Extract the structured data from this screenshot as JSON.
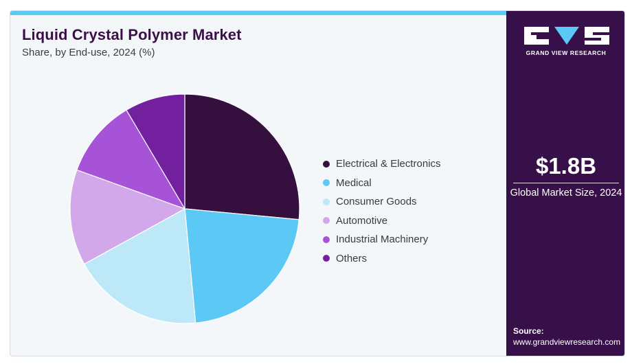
{
  "header": {
    "title": "Liquid Crystal Polymer Market",
    "subtitle": "Share, by End-use, 2024 (%)"
  },
  "sidebar": {
    "brand": "GRAND VIEW RESEARCH",
    "market_value": "$1.8B",
    "market_label": "Global Market Size, 2024",
    "source_label": "Source:",
    "source_url": "www.grandviewresearch.com"
  },
  "colors": {
    "accent_bar": "#5bc8f5",
    "sidebar_bg": "#37104a",
    "title": "#3a1047"
  },
  "chart_data": {
    "type": "pie",
    "title": "Liquid Crystal Polymer Market",
    "subtitle": "Share, by End-use, 2024 (%)",
    "legend_position": "right",
    "categories": [
      "Electrical & Electronics",
      "Medical",
      "Consumer Goods",
      "Automotive",
      "Industrial Machinery",
      "Others"
    ],
    "values": [
      26.5,
      22.0,
      18.5,
      13.5,
      11.0,
      8.5
    ],
    "colors": [
      "#35103f",
      "#5bc8f5",
      "#bde8f8",
      "#d3a8ea",
      "#a653d8",
      "#73209f"
    ]
  }
}
